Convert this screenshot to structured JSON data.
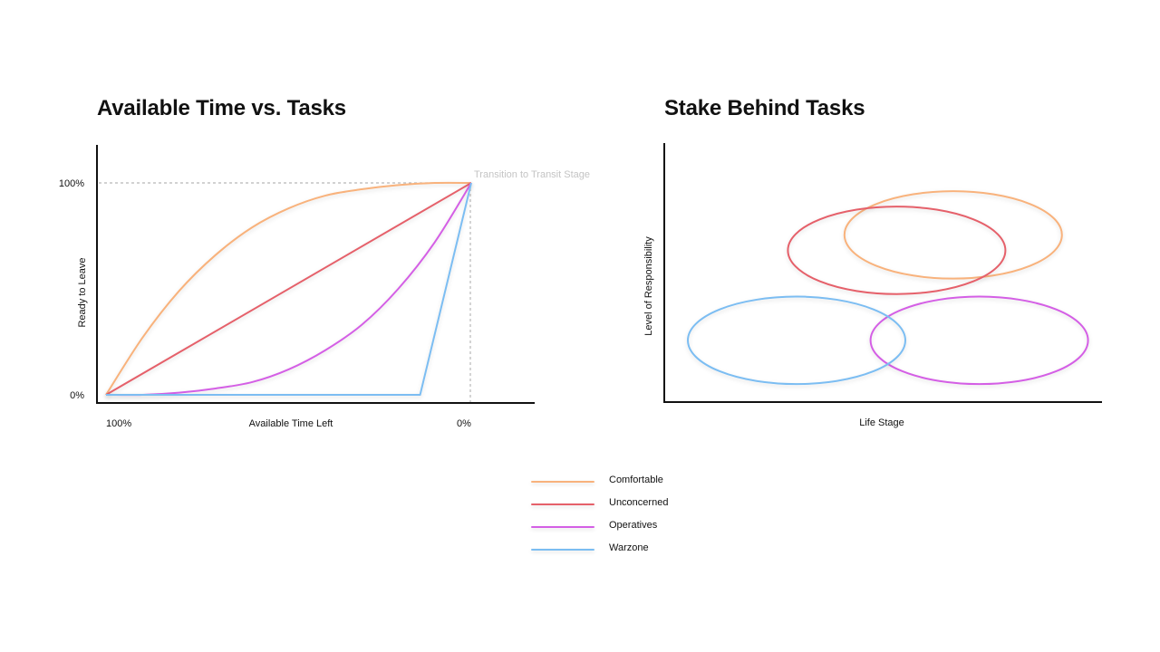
{
  "chart_data": [
    {
      "type": "line",
      "title": "Available Time vs. Tasks",
      "xlabel": "Available Time Left",
      "ylabel": "Ready to Leave",
      "x_ticks": [
        "100%",
        "0%"
      ],
      "y_ticks": [
        "0%",
        "100%"
      ],
      "xlim": [
        100,
        0
      ],
      "ylim": [
        0,
        100
      ],
      "annotation": "Transition to Transit Stage",
      "series": [
        {
          "name": "Comfortable",
          "x": [
            100,
            90,
            80,
            70,
            60,
            50,
            40,
            30,
            20,
            10,
            0
          ],
          "y": [
            0,
            27,
            49,
            66,
            79,
            88,
            94,
            97,
            99,
            100,
            100
          ]
        },
        {
          "name": "Unconcerned",
          "x": [
            100,
            0
          ],
          "y": [
            0,
            100
          ]
        },
        {
          "name": "Operatives",
          "x": [
            100,
            90,
            80,
            70,
            60,
            50,
            40,
            30,
            20,
            10,
            0
          ],
          "y": [
            0,
            0,
            1,
            3,
            6,
            12,
            21,
            33,
            50,
            72,
            100
          ]
        },
        {
          "name": "Warzone",
          "x": [
            100,
            14,
            0
          ],
          "y": [
            0,
            0,
            100
          ]
        }
      ]
    },
    {
      "type": "scatter",
      "title": "Stake Behind Tasks",
      "xlabel": "Life Stage",
      "ylabel": "Level of Responsibility",
      "series": [
        {
          "name": "Comfortable",
          "center": [
            0.66,
            0.35
          ],
          "spread": [
            0.25,
            0.34
          ]
        },
        {
          "name": "Unconcerned",
          "center": [
            0.53,
            0.41
          ],
          "spread": [
            0.25,
            0.34
          ]
        },
        {
          "name": "Operatives",
          "center": [
            0.72,
            0.76
          ],
          "spread": [
            0.25,
            0.34
          ]
        },
        {
          "name": "Warzone",
          "center": [
            0.3,
            0.76
          ],
          "spread": [
            0.25,
            0.34
          ]
        }
      ]
    }
  ],
  "legend": [
    {
      "name": "Comfortable",
      "color": "#F8B27C"
    },
    {
      "name": "Unconcerned",
      "color": "#E5606A"
    },
    {
      "name": "Operatives",
      "color": "#D45FE5"
    },
    {
      "name": "Warzone",
      "color": "#7BBDF2"
    }
  ]
}
